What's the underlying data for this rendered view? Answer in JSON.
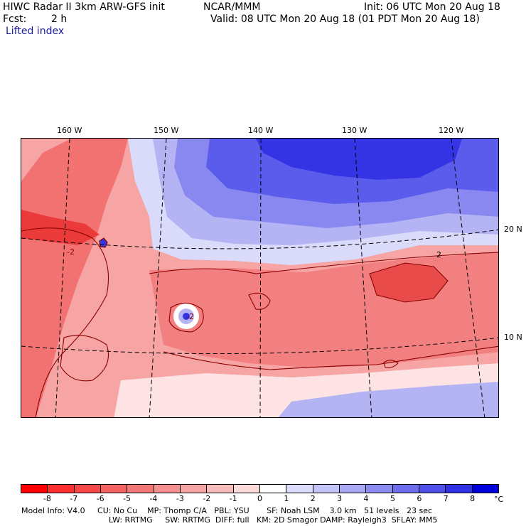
{
  "header": {
    "model_title": "HIWC Radar II 3km ARW-GFS init",
    "org": "NCAR/MMM",
    "init": "Init: 06 UTC Mon 20 Aug 18",
    "fcst_label": "Fcst:",
    "fcst_value": "2 h",
    "valid": "Valid: 08 UTC Mon 20 Aug 18 (01 PDT Mon 20 Aug 18)",
    "field": "Lifted index"
  },
  "map": {
    "lon_labels": [
      "160 W",
      "150 W",
      "140 W",
      "130 W",
      "120 W"
    ],
    "lat_labels": [
      "20 N",
      "10 N"
    ],
    "contour_labels": [
      "-2",
      "-2",
      "2"
    ],
    "colors": {
      "deep_red": "#e93030",
      "red": "#f06262",
      "salmon": "#f59090",
      "pink": "#f9c0c0",
      "pale_pink": "#fde3e3",
      "white": "#ffffff",
      "pale_blue": "#dadafa",
      "light_blue": "#b4b4f4",
      "mid_blue": "#8888f0",
      "blue": "#5c5cec",
      "deep_blue": "#3434e4",
      "contour": "#8b0000",
      "graticule": "#000000"
    }
  },
  "colorbar": {
    "unit": "°C",
    "ticks": [
      "-8",
      "-7",
      "-6",
      "-5",
      "-4",
      "-3",
      "-2",
      "-1",
      "0",
      "1",
      "2",
      "3",
      "4",
      "5",
      "6",
      "7",
      "8"
    ],
    "colors": [
      "#ff0000",
      "#ff3030",
      "#f84848",
      "#f46262",
      "#f27878",
      "#f49090",
      "#f6a4a4",
      "#f9bcbc",
      "#fcdada",
      "#ffffff",
      "#dcdcfc",
      "#c4c4f8",
      "#a8a8f4",
      "#8c8cf0",
      "#6e6eec",
      "#5050e8",
      "#3030e4",
      "#0000dd"
    ]
  },
  "footer": {
    "line1": "Model Info: V4.0     CU: No Cu    MP: Thomp C/A   PBL: YSU       SF: Noah LSM    3.0 km   51 levels   23 sec",
    "line2": "LW: RRTMG     SW: RRTMG  DIFF: full   KM: 2D Smagor DAMP: Rayleigh3  SFLAY: MM5"
  }
}
